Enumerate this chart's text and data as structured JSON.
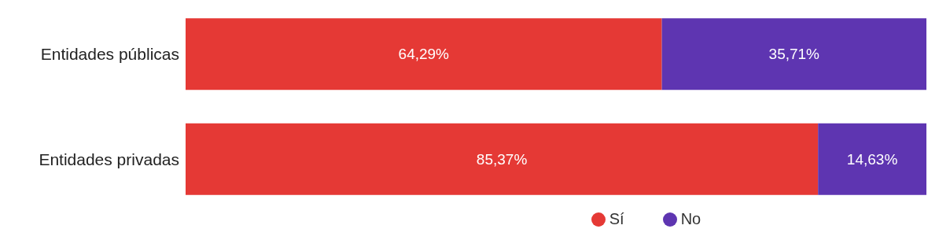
{
  "chart_data": {
    "type": "bar",
    "orientation": "horizontal",
    "stacked": true,
    "categories": [
      "Entidades públicas",
      "Entidades privadas"
    ],
    "series": [
      {
        "name": "Sí",
        "color": "#e53935",
        "values": [
          64.29,
          85.37
        ],
        "value_labels": [
          "64,29%",
          "85,37%"
        ]
      },
      {
        "name": "No",
        "color": "#5e35b1",
        "values": [
          35.71,
          14.63
        ],
        "value_labels": [
          "35,71%",
          "14,63%"
        ]
      }
    ],
    "legend": "bottom",
    "grid": false
  }
}
